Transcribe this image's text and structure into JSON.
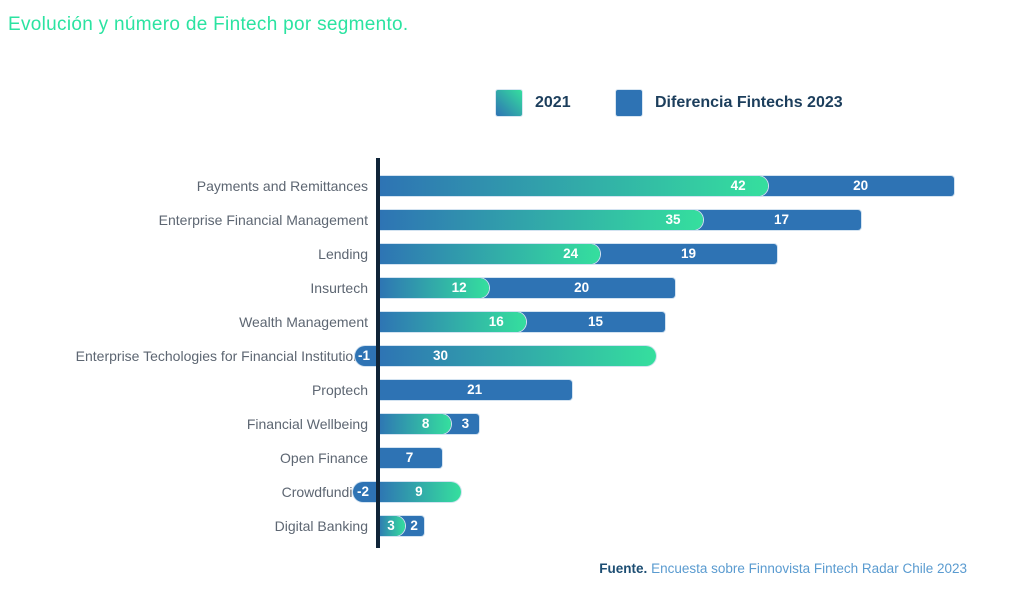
{
  "title": "Evolución y número de Fintech por segmento.",
  "legend": {
    "items": [
      {
        "label": "2021",
        "swatch": "gradient-blue-green"
      },
      {
        "label": "Diferencia Fintechs 2023",
        "swatch": "solid-blue"
      }
    ]
  },
  "footer": {
    "prefix": "Fuente.",
    "text": "Encuesta sobre Finnovista Fintech Radar Chile 2023"
  },
  "colors": {
    "title": "#2be3a1",
    "bar_blue": "#2e73b4",
    "gradient_start": "#2e73b4",
    "gradient_end": "#35df9e",
    "axis": "#0f2438",
    "category_label": "#5d6672",
    "legend_text": "#1c3e5c",
    "footer_prefix": "#1d4e73",
    "footer_source": "#5a9bd0",
    "bar_value_text": "#ffffff"
  },
  "chart_data": {
    "type": "bar",
    "orientation": "horizontal",
    "title": "Evolución y número de Fintech por segmento.",
    "categories": [
      "Payments and Remittances",
      "Enterprise Financial Management",
      "Lending",
      "Insurtech",
      "Wealth Management",
      "Enterprise Techologies for Financial Institutions",
      "Proptech",
      "Financial Wellbeing",
      "Open Finance",
      "Crowdfunding",
      "Digital Banking"
    ],
    "series": [
      {
        "name": "2021",
        "values": [
          42,
          35,
          24,
          12,
          16,
          30,
          null,
          8,
          null,
          9,
          3
        ]
      },
      {
        "name": "Diferencia Fintechs 2023",
        "values": [
          20,
          17,
          19,
          20,
          15,
          -1,
          21,
          3,
          7,
          -2,
          2
        ]
      }
    ],
    "value_labels_shown": true,
    "stacked": true,
    "xlim": [
      -2,
      62
    ],
    "grid": false,
    "legend_position": "top",
    "source": "Fuente. Encuesta sobre Finnovista Fintech Radar Chile 2023"
  }
}
